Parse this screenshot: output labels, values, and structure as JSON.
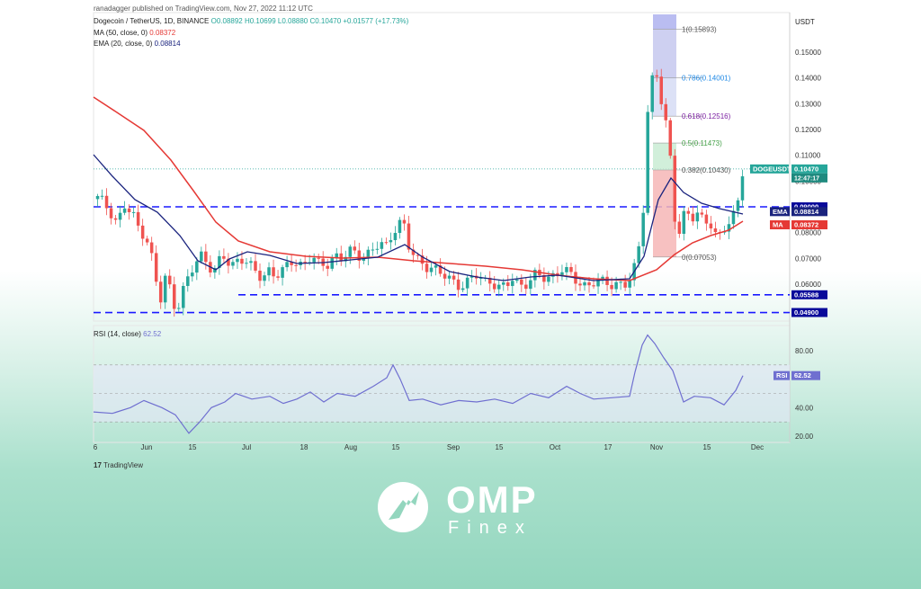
{
  "header": {
    "published": "ranadagger published on TradingView.com, Nov 27, 2022 11:12 UTC",
    "symbol": "Dogecoin / TetherUS, 1D, BINANCE",
    "ohlc": "O0.08892 H0.10699 L0.08880 C0.10470 +0.01577 (+17.73%)",
    "ma_label": "MA (50, close, 0)",
    "ma_value": "0.08372",
    "ema_label": "EMA (20, close, 0)",
    "ema_value": "0.08814",
    "currency": "USDT"
  },
  "colors": {
    "up": "#26a69a",
    "down": "#ef5350",
    "ma": "#e53935",
    "ema": "#1a237e",
    "level": "#1a1aff",
    "rsi": "#6f6fd0",
    "bg_bottom": "#93d6be"
  },
  "price_axis": {
    "ticks": [
      "0.15000",
      "0.14000",
      "0.13000",
      "0.12000",
      "0.11000",
      "0.10000",
      "0.08000",
      "0.07000",
      "0.06000"
    ],
    "tick_values": [
      0.15,
      0.14,
      0.13,
      0.12,
      0.11,
      0.1,
      0.08,
      0.07,
      0.06
    ],
    "labels": [
      {
        "text": "DOGEUSDT",
        "value": 0.1047
      },
      {
        "text": "0.10470",
        "value": 0.1047
      },
      {
        "text": "12:47:17",
        "value": 0.1025
      },
      {
        "text": "0.09000",
        "value": 0.09
      },
      {
        "text": "EMA",
        "value": 0.08814
      },
      {
        "text": "0.08814",
        "value": 0.08814
      },
      {
        "text": "MA",
        "value": 0.08372
      },
      {
        "text": "0.08372",
        "value": 0.08372
      },
      {
        "text": "0.05588",
        "value": 0.05588
      },
      {
        "text": "0.04900",
        "value": 0.049
      }
    ]
  },
  "fib": [
    {
      "label": "1(0.15893)",
      "value": 0.15893
    },
    {
      "label": "0.786(0.14001)",
      "value": 0.14001
    },
    {
      "label": "0.618(0.12516)",
      "value": 0.12516
    },
    {
      "label": "0.5(0.11473)",
      "value": 0.11473
    },
    {
      "label": "0.382(0.10430)",
      "value": 0.1043
    },
    {
      "label": "0(0.07053)",
      "value": 0.07053
    }
  ],
  "rsi": {
    "label": "RSI (14, close)",
    "value": "62.52",
    "tag": "RSI",
    "ticks": [
      "80.00",
      "40.00",
      "20.00"
    ],
    "tick_values": [
      80,
      40,
      20
    ]
  },
  "x_axis": [
    "6",
    "Jun",
    "15",
    "Jul",
    "18",
    "Aug",
    "15",
    "Sep",
    "15",
    "Oct",
    "17",
    "Nov",
    "15",
    "Dec"
  ],
  "footer": {
    "tradingview": "TradingView"
  },
  "brand": {
    "name": "OMP",
    "sub": "Finex"
  },
  "chart_data": {
    "type": "line",
    "title": "Dogecoin / TetherUS, 1D, BINANCE",
    "ylabel": "USDT",
    "ylim": [
      0.047,
      0.162
    ],
    "categories": [
      "6",
      "Jun",
      "15",
      "Jul",
      "18",
      "Aug",
      "15",
      "Sep",
      "15",
      "Oct",
      "17",
      "Nov",
      "15",
      "Dec"
    ],
    "horizontal_levels": [
      0.09,
      0.05588,
      0.049
    ],
    "series": [
      {
        "name": "MA (50, close, 0)",
        "values": [
          0.145,
          0.127,
          0.103,
          0.077,
          0.07,
          0.068,
          0.069,
          0.068,
          0.064,
          0.063,
          0.061,
          0.074,
          0.079,
          0.08372
        ]
      },
      {
        "name": "EMA (20, close, 0)",
        "values": [
          0.105,
          0.092,
          0.081,
          0.069,
          0.066,
          0.07,
          0.074,
          0.065,
          0.062,
          0.063,
          0.061,
          0.094,
          0.087,
          0.08814
        ]
      },
      {
        "name": "DOGEUSDT",
        "values": [
          0.093,
          0.082,
          0.054,
          0.069,
          0.063,
          0.068,
          0.084,
          0.061,
          0.059,
          0.062,
          0.061,
          0.14,
          0.08,
          0.1047
        ]
      },
      {
        "name": "RSI (14, close)",
        "values": [
          35,
          38,
          28,
          44,
          42,
          47,
          63,
          38,
          41,
          43,
          40,
          88,
          42,
          62.52
        ]
      }
    ]
  }
}
